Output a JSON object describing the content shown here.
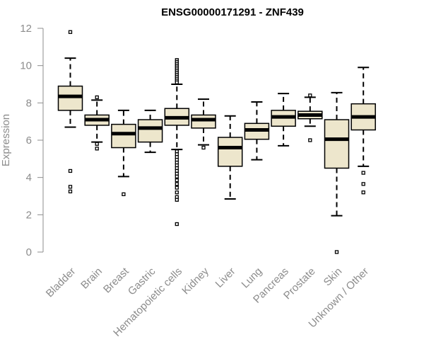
{
  "chart_data": {
    "type": "boxplot",
    "title": "ENSG00000171291 - ZNF439",
    "xlabel": "",
    "ylabel": "Expression",
    "ylim": [
      0,
      12
    ],
    "yticks": [
      0,
      2,
      4,
      6,
      8,
      10,
      12
    ],
    "colors": {
      "box_fill": "#ede6cc",
      "median": "#000000",
      "axis": "#8c8c8c"
    },
    "categories": [
      "Bladder",
      "Brain",
      "Breast",
      "Gastric",
      "Hematopoietic cells",
      "Kidney",
      "Liver",
      "Lung",
      "Pancreas",
      "Prostate",
      "Skin",
      "Unknown / Other"
    ],
    "boxes": [
      {
        "category": "Bladder",
        "whisker_low": 6.7,
        "q1": 7.6,
        "median": 8.35,
        "q3": 8.9,
        "whisker_high": 10.4,
        "outliers": [
          11.8,
          4.35,
          3.5,
          3.25
        ]
      },
      {
        "category": "Brain",
        "whisker_low": 5.9,
        "q1": 6.8,
        "median": 7.1,
        "q3": 7.35,
        "whisker_high": 8.15,
        "outliers": [
          8.3,
          5.8,
          5.55
        ]
      },
      {
        "category": "Breast",
        "whisker_low": 4.05,
        "q1": 5.6,
        "median": 6.35,
        "q3": 6.85,
        "whisker_high": 7.6,
        "outliers": [
          3.1
        ]
      },
      {
        "category": "Gastric",
        "whisker_low": 5.35,
        "q1": 5.9,
        "median": 6.65,
        "q3": 7.1,
        "whisker_high": 7.6,
        "outliers": []
      },
      {
        "category": "Hematopoietic cells",
        "whisker_low": 5.5,
        "q1": 6.8,
        "median": 7.2,
        "q3": 7.7,
        "whisker_high": 9.0,
        "outliers": [
          10.3,
          10.2,
          10.1,
          10.0,
          9.9,
          9.8,
          9.7,
          9.6,
          9.5,
          9.4,
          9.3,
          9.2,
          9.1,
          5.4,
          5.25,
          5.1,
          4.95,
          4.8,
          4.65,
          4.5,
          4.35,
          4.2,
          4.05,
          3.85,
          3.65,
          3.45,
          3.2,
          2.95,
          2.8,
          1.5
        ]
      },
      {
        "category": "Kidney",
        "whisker_low": 5.75,
        "q1": 6.65,
        "median": 7.1,
        "q3": 7.35,
        "whisker_high": 8.2,
        "outliers": [
          5.6
        ]
      },
      {
        "category": "Liver",
        "whisker_low": 2.85,
        "q1": 4.6,
        "median": 5.6,
        "q3": 6.15,
        "whisker_high": 7.3,
        "outliers": []
      },
      {
        "category": "Lung",
        "whisker_low": 4.95,
        "q1": 6.05,
        "median": 6.55,
        "q3": 6.9,
        "whisker_high": 8.05,
        "outliers": []
      },
      {
        "category": "Pancreas",
        "whisker_low": 5.7,
        "q1": 6.75,
        "median": 7.25,
        "q3": 7.6,
        "whisker_high": 8.5,
        "outliers": []
      },
      {
        "category": "Prostate",
        "whisker_low": 6.75,
        "q1": 7.15,
        "median": 7.35,
        "q3": 7.55,
        "whisker_high": 8.3,
        "outliers": [
          8.4,
          6.0
        ]
      },
      {
        "category": "Skin",
        "whisker_low": 1.95,
        "q1": 4.5,
        "median": 6.05,
        "q3": 7.1,
        "whisker_high": 8.55,
        "outliers": [
          0.0
        ]
      },
      {
        "category": "Unknown / Other",
        "whisker_low": 4.6,
        "q1": 6.55,
        "median": 7.25,
        "q3": 7.95,
        "whisker_high": 9.9,
        "outliers": [
          4.25,
          3.65,
          3.2
        ]
      }
    ]
  }
}
